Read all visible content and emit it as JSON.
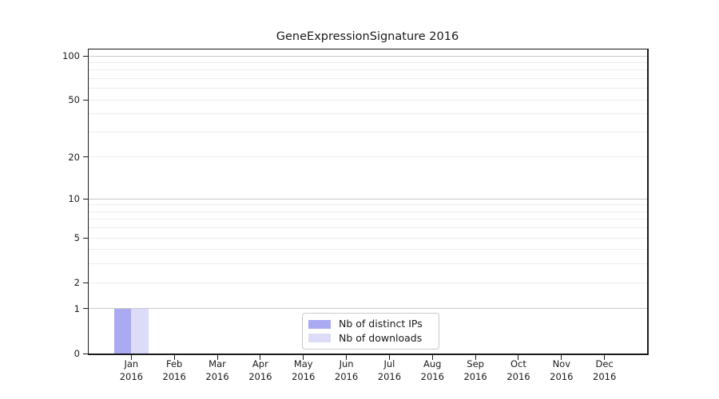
{
  "chart_data": {
    "type": "bar",
    "title": "GeneExpressionSignature 2016",
    "categories": [
      "Jan",
      "Feb",
      "Mar",
      "Apr",
      "May",
      "Jun",
      "Jul",
      "Aug",
      "Sep",
      "Oct",
      "Nov",
      "Dec"
    ],
    "x_year": "2016",
    "series": [
      {
        "name": "Nb of distinct IPs",
        "color": "#aaaaf2",
        "values": [
          1,
          0,
          0,
          0,
          0,
          0,
          0,
          0,
          0,
          0,
          0,
          0
        ]
      },
      {
        "name": "Nb of downloads",
        "color": "#dcdcf8",
        "values": [
          1,
          0,
          0,
          0,
          0,
          0,
          0,
          0,
          0,
          0,
          0,
          0
        ]
      }
    ],
    "y_axis": {
      "scale": "log10(1+value)",
      "y_min": 0,
      "y_max": 112,
      "tick_values": [
        0,
        1,
        2,
        5,
        10,
        20,
        50,
        100
      ],
      "tick_labels": [
        "0",
        "1",
        "2",
        "5",
        "10",
        "20",
        "50",
        "100"
      ],
      "major_grid_values": [
        1,
        10,
        100
      ],
      "minor_grid_values": [
        2,
        3,
        4,
        5,
        6,
        7,
        8,
        9,
        20,
        30,
        40,
        50,
        60,
        70,
        80,
        90
      ]
    },
    "legend": {
      "position": "inside-bottom-center"
    },
    "colors": {
      "grid_major": "#c9c9c9",
      "grid_minor": "#ececec",
      "axis": "#1a1a1a",
      "text": "#1a1a1a",
      "background": "#ffffff"
    }
  }
}
